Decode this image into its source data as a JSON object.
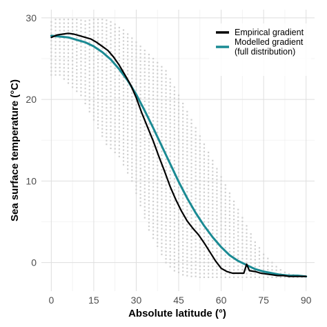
{
  "chart_data": {
    "type": "line",
    "title": "",
    "xlabel": "Absolute latitude (°)",
    "ylabel": "Sea surface temperature (°C)",
    "xlim": [
      -3.5,
      93
    ],
    "ylim": [
      -3.5,
      31
    ],
    "x_ticks": [
      0,
      15,
      30,
      45,
      60,
      75,
      90
    ],
    "y_ticks": [
      0,
      10,
      20,
      30
    ],
    "grid": true,
    "legend_position": "top-right",
    "series": [
      {
        "name": "Empirical gradient",
        "color": "#000000",
        "x": [
          0,
          2,
          4,
          6,
          8,
          10,
          12,
          14,
          16,
          18,
          20,
          22,
          24,
          26,
          28,
          30,
          32,
          34,
          36,
          38,
          40,
          42,
          44,
          46,
          48,
          50,
          52,
          54,
          56,
          58,
          60,
          62,
          64,
          66,
          68,
          69,
          70,
          72,
          74,
          76,
          78,
          80,
          82,
          84,
          86,
          88,
          90
        ],
        "y": [
          27.6,
          27.9,
          28.0,
          28.1,
          28.0,
          27.8,
          27.6,
          27.4,
          27.0,
          26.5,
          26.0,
          25.2,
          24.2,
          23.0,
          21.8,
          20.2,
          18.3,
          16.6,
          14.9,
          13.0,
          11.2,
          9.3,
          7.7,
          6.3,
          5.1,
          4.2,
          3.4,
          2.4,
          1.3,
          0.2,
          -0.7,
          -1.1,
          -1.3,
          -1.3,
          -1.3,
          -0.2,
          -1.0,
          -1.1,
          -1.3,
          -1.4,
          -1.5,
          -1.6,
          -1.6,
          -1.7,
          -1.7,
          -1.7,
          -1.7
        ]
      },
      {
        "name": "Modelled gradient\n(full distribution)",
        "color": "#1a8a93",
        "x": [
          0,
          3,
          6,
          9,
          12,
          15,
          18,
          21,
          24,
          27,
          30,
          33,
          36,
          39,
          42,
          45,
          48,
          51,
          54,
          57,
          60,
          63,
          66,
          69,
          72,
          75,
          78,
          81,
          84,
          87,
          90
        ],
        "y": [
          27.8,
          27.7,
          27.6,
          27.3,
          27.0,
          26.5,
          25.8,
          24.9,
          23.7,
          22.3,
          20.6,
          18.6,
          16.5,
          14.3,
          12.1,
          9.9,
          7.9,
          6.1,
          4.5,
          3.1,
          1.9,
          0.9,
          0.2,
          -0.3,
          -0.8,
          -1.1,
          -1.3,
          -1.5,
          -1.6,
          -1.6,
          -1.7
        ]
      }
    ],
    "distribution": {
      "color": "#cfcfcf",
      "note_lat": [
        0,
        3,
        6,
        9,
        12,
        15,
        18,
        21,
        24,
        27,
        30,
        33,
        36,
        39,
        42,
        45,
        48,
        51,
        54,
        57,
        60,
        63,
        66,
        69,
        72,
        75,
        78,
        81,
        84,
        87
      ],
      "lat": [
        0,
        1.5,
        3,
        4.5,
        6,
        7.5,
        9,
        10.5,
        12,
        13.5,
        15,
        16.5,
        18,
        19.5,
        21,
        22.5,
        24,
        25.5,
        27,
        28.5,
        30,
        31.5,
        33,
        34.5,
        36,
        37.5,
        39,
        40.5,
        42,
        43.5,
        45,
        46.5,
        48,
        49.5,
        51,
        52.5,
        54,
        55.5,
        57,
        58.5,
        60,
        61.5,
        63,
        64.5,
        66,
        67.5,
        69,
        70.5,
        72,
        73.5,
        75,
        76.5,
        78,
        79.5,
        81,
        82.5,
        84,
        85.5,
        87,
        88.5
      ],
      "min": [
        23.0,
        23.0,
        23.0,
        22.5,
        22.0,
        21.5,
        21.0,
        20.5,
        19.5,
        18.5,
        17.5,
        16.5,
        15.5,
        14.5,
        14.0,
        13.5,
        13.0,
        12.0,
        11.0,
        10.0,
        8.5,
        7.0,
        5.5,
        4.0,
        3.0,
        2.0,
        1.0,
        0.0,
        -0.5,
        -1.0,
        -1.2,
        -1.5,
        -1.6,
        -1.7,
        -1.7,
        -1.8,
        -1.8,
        -1.8,
        -1.8,
        -1.8,
        -1.8,
        -1.8,
        -1.8,
        -1.8,
        -1.8,
        -1.8,
        -1.8,
        -1.8,
        -1.8,
        -1.8,
        -1.8,
        -1.8,
        -1.8,
        -1.8,
        -1.8,
        -1.8,
        -1.8,
        -1.8,
        -1.8,
        -1.8
      ],
      "max": [
        29.5,
        29.8,
        29.8,
        29.8,
        29.8,
        29.8,
        29.8,
        29.7,
        29.6,
        29.7,
        29.8,
        29.8,
        29.8,
        29.7,
        29.5,
        29.2,
        28.8,
        28.5,
        28.0,
        27.5,
        27.0,
        26.5,
        26.0,
        25.5,
        25.0,
        24.5,
        24.0,
        23.5,
        22.5,
        21.5,
        20.5,
        19.5,
        18.5,
        17.5,
        16.5,
        15.5,
        14.5,
        13.5,
        12.5,
        11.5,
        10.5,
        9.5,
        8.5,
        7.5,
        6.5,
        5.5,
        4.5,
        3.5,
        2.5,
        1.8,
        1.0,
        0.5,
        0.0,
        -0.5,
        -0.9,
        -1.2,
        -1.4,
        -1.5,
        -1.6,
        -1.7
      ]
    }
  }
}
